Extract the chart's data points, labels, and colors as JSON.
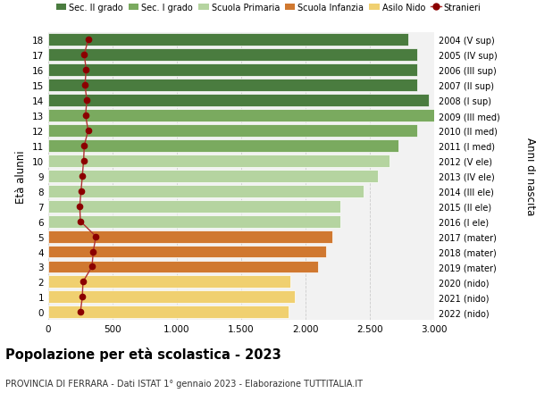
{
  "ages": [
    18,
    17,
    16,
    15,
    14,
    13,
    12,
    11,
    10,
    9,
    8,
    7,
    6,
    5,
    4,
    3,
    2,
    1,
    0
  ],
  "years": [
    "2004 (V sup)",
    "2005 (IV sup)",
    "2006 (III sup)",
    "2007 (II sup)",
    "2008 (I sup)",
    "2009 (III med)",
    "2010 (II med)",
    "2011 (I med)",
    "2012 (V ele)",
    "2013 (IV ele)",
    "2014 (III ele)",
    "2015 (II ele)",
    "2016 (I ele)",
    "2017 (mater)",
    "2018 (mater)",
    "2019 (mater)",
    "2020 (nido)",
    "2021 (nido)",
    "2022 (nido)"
  ],
  "bar_values": [
    2800,
    2870,
    2870,
    2870,
    2960,
    3000,
    2870,
    2720,
    2650,
    2560,
    2450,
    2270,
    2270,
    2210,
    2160,
    2100,
    1880,
    1920,
    1870
  ],
  "stranieri_values": [
    310,
    280,
    295,
    285,
    300,
    290,
    310,
    280,
    275,
    265,
    255,
    245,
    250,
    370,
    350,
    340,
    270,
    265,
    250
  ],
  "bar_colors": [
    "#4a7c3f",
    "#4a7c3f",
    "#4a7c3f",
    "#4a7c3f",
    "#4a7c3f",
    "#7aaa5f",
    "#7aaa5f",
    "#7aaa5f",
    "#b5d4a0",
    "#b5d4a0",
    "#b5d4a0",
    "#b5d4a0",
    "#b5d4a0",
    "#d07830",
    "#d07830",
    "#d07830",
    "#f0d070",
    "#f0d070",
    "#f0d070"
  ],
  "stranieri_color": "#8b0000",
  "stranieri_line_color": "#b03030",
  "bg_color": "#ffffff",
  "plot_bg_color": "#f2f2f2",
  "grid_color": "#cccccc",
  "title": "Popolazione per età scolastica - 2023",
  "subtitle": "PROVINCIA DI FERRARA - Dati ISTAT 1° gennaio 2023 - Elaborazione TUTTITALIA.IT",
  "ylabel": "Età alunni",
  "right_ylabel": "Anni di nascita",
  "xlim": [
    0,
    3000
  ],
  "xticks": [
    0,
    500,
    1000,
    1500,
    2000,
    2500,
    3000
  ],
  "legend_labels": [
    "Sec. II grado",
    "Sec. I grado",
    "Scuola Primaria",
    "Scuola Infanzia",
    "Asilo Nido",
    "Stranieri"
  ],
  "legend_colors": [
    "#4a7c3f",
    "#7aaa5f",
    "#b5d4a0",
    "#d07830",
    "#f0d070",
    "#8b0000"
  ]
}
